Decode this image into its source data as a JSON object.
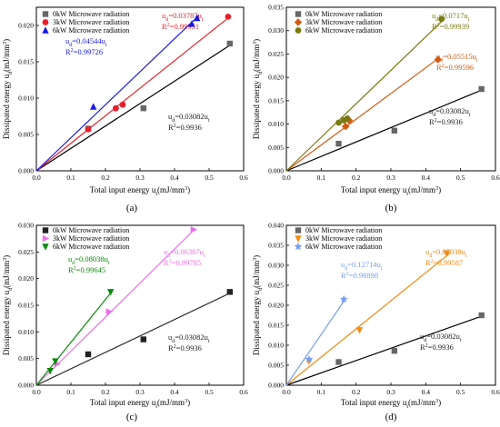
{
  "colors": {
    "black": "#222222",
    "red": "#e8202a",
    "blue": "#1a1ae6",
    "olive": "#7a7a10",
    "orange_dark": "#d35a12",
    "magenta": "#ee6ee8",
    "green": "#0a8a0a",
    "orange": "#f38a12",
    "lightblue": "#7a9ef0",
    "gray": "#666666"
  },
  "chart_data": [
    {
      "panel_label": "(a)",
      "type": "scatter",
      "xlabel": "Total input energy uₜ(mJ/mm³)",
      "ylabel": "Dissipated energy uₐ(mJ/mm³)",
      "xlim": [
        0.0,
        0.6
      ],
      "ylim": [
        0.0,
        0.0225
      ],
      "xticks": [
        0.0,
        0.1,
        0.2,
        0.3,
        0.4,
        0.5,
        0.6
      ],
      "xtick_labels": [
        "0.0",
        "0.1",
        "0.2",
        "0.3",
        "0.4",
        "0.5",
        "0.6"
      ],
      "yticks": [
        0.0,
        0.005,
        0.01,
        0.015,
        0.02
      ],
      "ytick_labels": [
        "0.000",
        "0.005",
        "0.010",
        "0.015",
        "0.020"
      ],
      "legend_position": "top-left",
      "series": [
        {
          "name": "0kW Microwave radiation",
          "marker": "square",
          "color_key": "gray",
          "slope": 0.03082,
          "line_x_end": 0.56,
          "points": [
            [
              0.15,
              0.0058
            ],
            [
              0.31,
              0.0086
            ],
            [
              0.56,
              0.0175
            ]
          ],
          "fit_eq": "u_d=0.03082u_t",
          "fit_r2": "R^2=0.9936",
          "label_color_key": "black"
        },
        {
          "name": "3kW Microwave radiation",
          "marker": "circle",
          "color_key": "red",
          "slope": 0.03787,
          "line_x_end": 0.56,
          "points": [
            [
              0.15,
              0.0057
            ],
            [
              0.23,
              0.0086
            ],
            [
              0.25,
              0.0091
            ],
            [
              0.555,
              0.0212
            ]
          ],
          "fit_eq": "u_d=0.03787u_t",
          "fit_r2": "R^2=0.99951",
          "label_color_key": "red"
        },
        {
          "name": "6kW Microwave radiation",
          "marker": "triangle",
          "color_key": "blue",
          "slope": 0.04544,
          "line_x_end": 0.47,
          "points": [
            [
              0.165,
              0.0088
            ],
            [
              0.45,
              0.0202
            ],
            [
              0.465,
              0.021
            ]
          ],
          "fit_eq": "u_d=0.04544u_t",
          "fit_r2": "R^2=0.99726",
          "label_color_key": "blue"
        }
      ]
    },
    {
      "panel_label": "(b)",
      "type": "scatter",
      "xlabel": "Total input energy uₜ(mJ/mm³)",
      "ylabel": "Dissipated energy uₐ(mJ/mm³)",
      "xlim": [
        0.0,
        0.6
      ],
      "ylim": [
        0.0,
        0.035
      ],
      "xticks": [
        0.0,
        0.1,
        0.2,
        0.3,
        0.4,
        0.5,
        0.6
      ],
      "xtick_labels": [
        "0.0",
        "0.1",
        "0.2",
        "0.3",
        "0.4",
        "0.5",
        "0.6"
      ],
      "yticks": [
        0.0,
        0.005,
        0.01,
        0.015,
        0.02,
        0.025,
        0.03,
        0.035
      ],
      "ytick_labels": [
        "0.000",
        "0.005",
        "0.010",
        "0.015",
        "0.020",
        "0.025",
        "0.030",
        "0.035"
      ],
      "legend_position": "top-left",
      "series": [
        {
          "name": "0kW Microwave radiation",
          "marker": "square",
          "color_key": "gray",
          "slope": 0.03082,
          "line_x_end": 0.56,
          "points": [
            [
              0.15,
              0.0058
            ],
            [
              0.31,
              0.0086
            ],
            [
              0.56,
              0.0175
            ]
          ],
          "fit_eq": "u_d=0.03082u_t",
          "fit_r2": "R^2=0.9936",
          "label_color_key": "black"
        },
        {
          "name": "3kW Microwave radiation",
          "marker": "diamond",
          "color_key": "orange_dark",
          "slope": 0.05515,
          "line_x_end": 0.44,
          "points": [
            [
              0.17,
              0.0095
            ],
            [
              0.18,
              0.0108
            ],
            [
              0.435,
              0.0238
            ]
          ],
          "fit_eq": "u_d=0.05515u_t",
          "fit_r2": "R^2=0.99596",
          "label_color_key": "orange_dark"
        },
        {
          "name": "6kW Microwave radiation",
          "marker": "circle",
          "color_key": "olive",
          "slope": 0.0717,
          "line_x_end": 0.455,
          "points": [
            [
              0.15,
              0.0103
            ],
            [
              0.165,
              0.0108
            ],
            [
              0.175,
              0.0112
            ],
            [
              0.445,
              0.0325
            ]
          ],
          "fit_eq": "u_d=0.0717u_t",
          "fit_r2": "R^2=0.99939",
          "label_color_key": "olive"
        }
      ]
    },
    {
      "panel_label": "(c)",
      "type": "scatter",
      "xlabel": "Total input energy uₜ(mJ/mm³)",
      "ylabel": "Dissipated energy uₐ(mJ/mm³)",
      "xlim": [
        0.0,
        0.6
      ],
      "ylim": [
        0.0,
        0.03
      ],
      "xticks": [
        0.0,
        0.1,
        0.2,
        0.3,
        0.4,
        0.5,
        0.6
      ],
      "xtick_labels": [
        "0.0",
        "0.1",
        "0.2",
        "0.3",
        "0.4",
        "0.5",
        "0.6"
      ],
      "yticks": [
        0.0,
        0.005,
        0.01,
        0.015,
        0.02,
        0.025,
        0.03
      ],
      "ytick_labels": [
        "0.000",
        "0.005",
        "0.010",
        "0.015",
        "0.020",
        "0.025",
        "0.030"
      ],
      "legend_position": "top-left",
      "series": [
        {
          "name": "0kW Microwave radiation",
          "marker": "square",
          "color_key": "black",
          "slope": 0.03082,
          "line_x_end": 0.56,
          "points": [
            [
              0.15,
              0.0058
            ],
            [
              0.31,
              0.0086
            ],
            [
              0.56,
              0.0175
            ]
          ],
          "fit_eq": "u_d=0.03082u_t",
          "fit_r2": "R^2=0.9936",
          "label_color_key": "black"
        },
        {
          "name": "3kW Microwave radiation",
          "marker": "triangle-right",
          "color_key": "magenta",
          "slope": 0.06387,
          "line_x_end": 0.46,
          "points": [
            [
              0.06,
              0.004
            ],
            [
              0.21,
              0.0138
            ],
            [
              0.455,
              0.0292
            ]
          ],
          "fit_eq": "u_d=0.06387u_t",
          "fit_r2": "R^2=0.99785",
          "label_color_key": "magenta"
        },
        {
          "name": "6kW Microwave radiation",
          "marker": "triangle-down",
          "color_key": "green",
          "slope": 0.08038,
          "line_x_end": 0.22,
          "points": [
            [
              0.04,
              0.0027
            ],
            [
              0.055,
              0.0045
            ],
            [
              0.215,
              0.0175
            ]
          ],
          "fit_eq": "u_d=0.08038u_t",
          "fit_r2": "R^2=0.99645",
          "label_color_key": "green"
        }
      ]
    },
    {
      "panel_label": "(d)",
      "type": "scatter",
      "xlabel": "Total input energy uₜ(mJ/mm³)",
      "ylabel": "Dissipated energy uₐ(mJ/mm³)",
      "xlim": [
        0.0,
        0.6
      ],
      "ylim": [
        0.0,
        0.04
      ],
      "xticks": [
        0.0,
        0.1,
        0.2,
        0.3,
        0.4,
        0.5,
        0.6
      ],
      "xtick_labels": [
        "0.0",
        "0.1",
        "0.2",
        "0.3",
        "0.4",
        "0.5",
        "0.6"
      ],
      "yticks": [
        0.0,
        0.005,
        0.01,
        0.015,
        0.02,
        0.025,
        0.03,
        0.035,
        0.04
      ],
      "ytick_labels": [
        "0.000",
        "0.005",
        "0.010",
        "0.015",
        "0.020",
        "0.025",
        "0.030",
        "0.035",
        "0.040"
      ],
      "legend_position": "top-left",
      "series": [
        {
          "name": "0kW Microwave radiation",
          "marker": "square",
          "color_key": "gray",
          "slope": 0.03082,
          "line_x_end": 0.56,
          "points": [
            [
              0.15,
              0.0058
            ],
            [
              0.31,
              0.0086
            ],
            [
              0.56,
              0.0175
            ]
          ],
          "fit_eq": "u_d=0.03082u_t",
          "fit_r2": "R^2=0.9936",
          "label_color_key": "black"
        },
        {
          "name": "3kW Microwave radiation",
          "marker": "triangle-down",
          "color_key": "orange",
          "slope": 0.07038,
          "line_x_end": 0.47,
          "points": [
            [
              0.065,
              0.006
            ],
            [
              0.21,
              0.0138
            ],
            [
              0.46,
              0.033
            ]
          ],
          "fit_eq": "u_d=0.07038u_t",
          "fit_r2": "R^2=0.99587",
          "label_color_key": "orange"
        },
        {
          "name": "6kW Microwave radiation",
          "marker": "star",
          "color_key": "lightblue",
          "slope": 0.12714,
          "line_x_end": 0.17,
          "points": [
            [
              0.065,
              0.0065
            ],
            [
              0.165,
              0.0215
            ]
          ],
          "fit_eq": "u_d=0.12714u_t",
          "fit_r2": "R^2=0.98898",
          "label_color_key": "lightblue"
        }
      ]
    }
  ]
}
